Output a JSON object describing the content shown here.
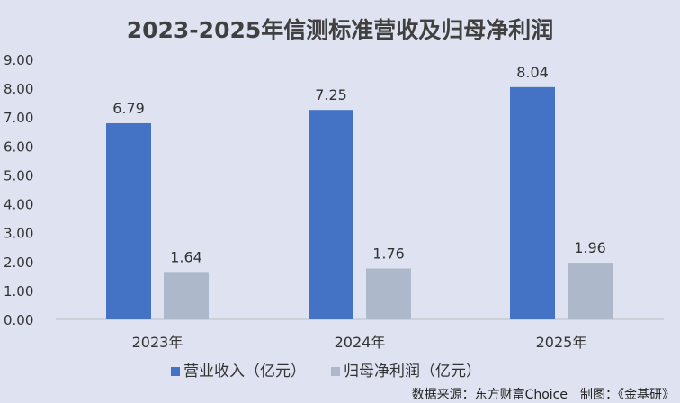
{
  "chart_data": {
    "type": "bar",
    "title": "2023-2025年信测标准营收及归母净利润",
    "categories": [
      "2023年",
      "2024年",
      "2025年"
    ],
    "series": [
      {
        "name": "营业收入（亿元）",
        "values": [
          6.79,
          7.25,
          8.04
        ],
        "labels": [
          "6.79",
          "7.25",
          "8.04"
        ],
        "color": "#4472c4"
      },
      {
        "name": "归母净利润（亿元）",
        "values": [
          1.64,
          1.76,
          1.96
        ],
        "labels": [
          "1.64",
          "1.76",
          "1.96"
        ],
        "color": "#adb9ca"
      }
    ],
    "yticks": [
      "0.00",
      "1.00",
      "2.00",
      "3.00",
      "4.00",
      "5.00",
      "6.00",
      "7.00",
      "8.00",
      "9.00"
    ],
    "ylim": [
      0,
      9
    ],
    "grid": false,
    "legend": "bottom"
  },
  "source": "数据来源：东方财富Choice　制图：《金基研》"
}
